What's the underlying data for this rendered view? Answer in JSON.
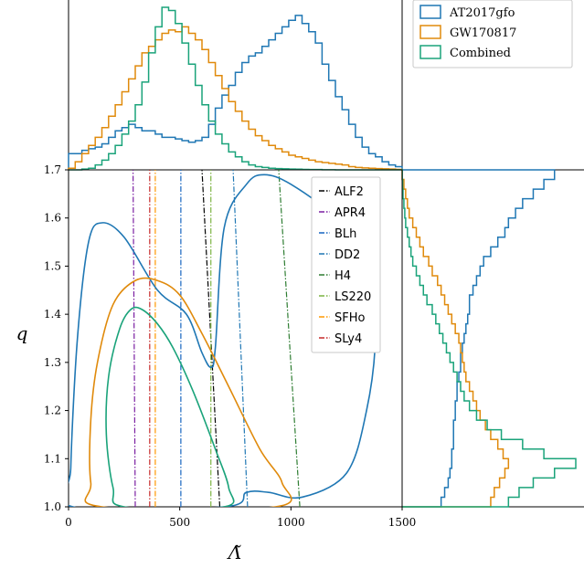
{
  "chart_data": {
    "type": "corner-plot",
    "x_axis": {
      "label": "Λ̃",
      "range": [
        0,
        1500
      ],
      "ticks": [
        0,
        500,
        1000,
        1500
      ]
    },
    "y_axis": {
      "label": "q",
      "range": [
        1.0,
        1.7
      ],
      "ticks": [
        1.0,
        1.1,
        1.2,
        1.3,
        1.4,
        1.5,
        1.6,
        1.7
      ]
    },
    "colors": {
      "AT2017gfo": "#1f77b4",
      "GW170817": "#e08a0b",
      "Combined": "#1aa37a"
    },
    "legend_top_right": {
      "placement": "top-right",
      "entries": [
        {
          "name": "AT2017gfo",
          "color": "#1f77b4"
        },
        {
          "name": "GW170817",
          "color": "#e08a0b"
        },
        {
          "name": "Combined",
          "color": "#1aa37a"
        }
      ]
    },
    "eos_lines": [
      {
        "name": "ALF2",
        "color": "#000000",
        "x_at_q1": 680,
        "x_at_q17": 600
      },
      {
        "name": "APR4",
        "color": "#7b1fa2",
        "x_at_q1": 300,
        "x_at_q17": 290
      },
      {
        "name": "BLh",
        "color": "#1565c0",
        "x_at_q1": 505,
        "x_at_q17": 505
      },
      {
        "name": "DD2",
        "color": "#1f77b4",
        "x_at_q1": 805,
        "x_at_q17": 740
      },
      {
        "name": "H4",
        "color": "#2e7d32",
        "x_at_q1": 1040,
        "x_at_q17": 945
      },
      {
        "name": "LS220",
        "color": "#7cb342",
        "x_at_q1": 640,
        "x_at_q17": 640
      },
      {
        "name": "SFHo",
        "color": "#ff9800",
        "x_at_q1": 390,
        "x_at_q17": 390
      },
      {
        "name": "SLy4",
        "color": "#c62828",
        "x_at_q1": 365,
        "x_at_q17": 365
      }
    ],
    "marginal_lambda_histograms": [
      {
        "name": "AT2017gfo",
        "bins": [
          0,
          30,
          60,
          90,
          120,
          150,
          180,
          210,
          240,
          270,
          300,
          330,
          360,
          390,
          420,
          450,
          480,
          510,
          540,
          570,
          600,
          630,
          660,
          690,
          720,
          750,
          780,
          810,
          840,
          870,
          900,
          930,
          960,
          990,
          1020,
          1050,
          1080,
          1110,
          1140,
          1170,
          1200,
          1230,
          1260,
          1290,
          1320,
          1350,
          1380,
          1410,
          1440,
          1470,
          1500
        ],
        "values": [
          0.1,
          0.1,
          0.12,
          0.13,
          0.14,
          0.16,
          0.2,
          0.24,
          0.26,
          0.28,
          0.26,
          0.24,
          0.24,
          0.22,
          0.2,
          0.2,
          0.19,
          0.18,
          0.17,
          0.18,
          0.2,
          0.28,
          0.38,
          0.46,
          0.52,
          0.6,
          0.66,
          0.7,
          0.72,
          0.76,
          0.8,
          0.84,
          0.88,
          0.92,
          0.95,
          0.9,
          0.85,
          0.78,
          0.65,
          0.55,
          0.45,
          0.37,
          0.28,
          0.2,
          0.14,
          0.1,
          0.08,
          0.05,
          0.03,
          0.02
        ]
      },
      {
        "name": "GW170817",
        "bins": [
          0,
          30,
          60,
          90,
          120,
          150,
          180,
          210,
          240,
          270,
          300,
          330,
          360,
          390,
          420,
          450,
          480,
          510,
          540,
          570,
          600,
          630,
          660,
          690,
          720,
          750,
          780,
          810,
          840,
          870,
          900,
          930,
          960,
          990,
          1020,
          1050,
          1080,
          1110,
          1140,
          1170,
          1200,
          1230,
          1260,
          1290,
          1320,
          1350,
          1380,
          1410,
          1440,
          1470,
          1500
        ],
        "values": [
          0.01,
          0.05,
          0.1,
          0.15,
          0.2,
          0.26,
          0.33,
          0.4,
          0.48,
          0.56,
          0.64,
          0.72,
          0.76,
          0.8,
          0.84,
          0.86,
          0.85,
          0.88,
          0.84,
          0.8,
          0.74,
          0.66,
          0.58,
          0.5,
          0.42,
          0.36,
          0.3,
          0.25,
          0.21,
          0.18,
          0.15,
          0.13,
          0.11,
          0.09,
          0.08,
          0.07,
          0.06,
          0.05,
          0.045,
          0.04,
          0.035,
          0.03,
          0.02,
          0.015,
          0.012,
          0.01,
          0.008,
          0.006,
          0.005,
          0.003
        ]
      },
      {
        "name": "Combined",
        "bins": [
          0,
          30,
          60,
          90,
          120,
          150,
          180,
          210,
          240,
          270,
          300,
          330,
          360,
          390,
          420,
          450,
          480,
          510,
          540,
          570,
          600,
          630,
          660,
          690,
          720,
          750,
          780,
          810,
          840,
          870,
          900,
          930,
          960,
          990,
          1020,
          1050,
          1080,
          1110,
          1140,
          1170,
          1200,
          1230,
          1260,
          1290,
          1320,
          1350,
          1380,
          1410,
          1440,
          1470,
          1500
        ],
        "values": [
          0.0,
          0.0,
          0.005,
          0.01,
          0.03,
          0.06,
          0.1,
          0.15,
          0.22,
          0.3,
          0.4,
          0.54,
          0.72,
          0.88,
          1.0,
          0.98,
          0.9,
          0.78,
          0.65,
          0.52,
          0.4,
          0.3,
          0.22,
          0.16,
          0.11,
          0.08,
          0.05,
          0.03,
          0.02,
          0.015,
          0.01,
          0.008,
          0.006,
          0.005,
          0.004,
          0.003,
          0.002,
          0.002,
          0.001,
          0.001,
          0.0,
          0.0,
          0.0,
          0.0,
          0.0,
          0.0,
          0.0,
          0.0,
          0.0,
          0.0
        ]
      }
    ],
    "marginal_q_histograms": [
      {
        "name": "AT2017gfo",
        "q_bins": [
          1.0,
          1.02,
          1.04,
          1.06,
          1.08,
          1.1,
          1.12,
          1.14,
          1.16,
          1.18,
          1.2,
          1.22,
          1.24,
          1.26,
          1.28,
          1.3,
          1.32,
          1.34,
          1.36,
          1.38,
          1.4,
          1.42,
          1.44,
          1.46,
          1.48,
          1.5,
          1.52,
          1.54,
          1.56,
          1.58,
          1.6,
          1.62,
          1.64,
          1.66,
          1.68,
          1.7
        ],
        "values": [
          0.22,
          0.24,
          0.26,
          0.27,
          0.28,
          0.28,
          0.29,
          0.29,
          0.29,
          0.3,
          0.3,
          0.31,
          0.31,
          0.32,
          0.33,
          0.33,
          0.34,
          0.35,
          0.36,
          0.37,
          0.38,
          0.38,
          0.4,
          0.42,
          0.44,
          0.46,
          0.5,
          0.54,
          0.58,
          0.6,
          0.64,
          0.68,
          0.74,
          0.8,
          0.86
        ]
      },
      {
        "name": "GW170817",
        "q_bins": [
          1.0,
          1.02,
          1.04,
          1.06,
          1.08,
          1.1,
          1.12,
          1.14,
          1.16,
          1.18,
          1.2,
          1.22,
          1.24,
          1.26,
          1.28,
          1.3,
          1.32,
          1.34,
          1.36,
          1.38,
          1.4,
          1.42,
          1.44,
          1.46,
          1.48,
          1.5,
          1.52,
          1.54,
          1.56,
          1.58,
          1.6,
          1.62,
          1.64,
          1.66,
          1.68,
          1.7
        ],
        "values": [
          0.5,
          0.52,
          0.55,
          0.58,
          0.6,
          0.57,
          0.54,
          0.5,
          0.47,
          0.44,
          0.42,
          0.4,
          0.38,
          0.36,
          0.35,
          0.34,
          0.33,
          0.32,
          0.3,
          0.28,
          0.26,
          0.24,
          0.22,
          0.2,
          0.17,
          0.15,
          0.12,
          0.1,
          0.08,
          0.06,
          0.04,
          0.03,
          0.02,
          0.01,
          0.0
        ]
      },
      {
        "name": "Combined",
        "q_bins": [
          1.0,
          1.02,
          1.04,
          1.06,
          1.08,
          1.1,
          1.12,
          1.14,
          1.16,
          1.18,
          1.2,
          1.22,
          1.24,
          1.26,
          1.28,
          1.3,
          1.32,
          1.34,
          1.36,
          1.38,
          1.4,
          1.42,
          1.44,
          1.46,
          1.48,
          1.5,
          1.52,
          1.54,
          1.56,
          1.58,
          1.6,
          1.62,
          1.64,
          1.66,
          1.68,
          1.7
        ],
        "values": [
          0.6,
          0.66,
          0.74,
          0.86,
          0.98,
          0.8,
          0.68,
          0.56,
          0.48,
          0.42,
          0.38,
          0.35,
          0.33,
          0.31,
          0.29,
          0.27,
          0.25,
          0.23,
          0.21,
          0.19,
          0.17,
          0.14,
          0.12,
          0.1,
          0.08,
          0.06,
          0.05,
          0.04,
          0.03,
          0.02,
          0.015,
          0.01,
          0.005,
          0.003,
          0.001
        ]
      }
    ],
    "contours": [
      {
        "name": "AT2017gfo",
        "points": [
          [
            20,
            1.0
          ],
          [
            10,
            1.08
          ],
          [
            40,
            1.35
          ],
          [
            90,
            1.55
          ],
          [
            150,
            1.59
          ],
          [
            250,
            1.56
          ],
          [
            400,
            1.45
          ],
          [
            530,
            1.4
          ],
          [
            600,
            1.32
          ],
          [
            640,
            1.29
          ],
          [
            660,
            1.33
          ],
          [
            700,
            1.58
          ],
          [
            800,
            1.67
          ],
          [
            880,
            1.69
          ],
          [
            1000,
            1.67
          ],
          [
            1200,
            1.6
          ],
          [
            1360,
            1.5
          ],
          [
            1380,
            1.35
          ],
          [
            1340,
            1.2
          ],
          [
            1250,
            1.07
          ],
          [
            1050,
            1.02
          ],
          [
            900,
            1.03
          ],
          [
            800,
            1.03
          ],
          [
            700,
            1.0
          ]
        ]
      },
      {
        "name": "GW170817",
        "points": [
          [
            150,
            1.0
          ],
          [
            100,
            1.05
          ],
          [
            100,
            1.18
          ],
          [
            130,
            1.3
          ],
          [
            200,
            1.42
          ],
          [
            300,
            1.47
          ],
          [
            400,
            1.47
          ],
          [
            500,
            1.44
          ],
          [
            600,
            1.36
          ],
          [
            720,
            1.25
          ],
          [
            860,
            1.12
          ],
          [
            960,
            1.05
          ],
          [
            930,
            1.0
          ]
        ]
      },
      {
        "name": "Combined",
        "points": [
          [
            250,
            1.0
          ],
          [
            200,
            1.04
          ],
          [
            170,
            1.15
          ],
          [
            180,
            1.27
          ],
          [
            230,
            1.37
          ],
          [
            280,
            1.41
          ],
          [
            330,
            1.41
          ],
          [
            400,
            1.38
          ],
          [
            470,
            1.33
          ],
          [
            560,
            1.24
          ],
          [
            660,
            1.12
          ],
          [
            720,
            1.04
          ],
          [
            700,
            1.0
          ]
        ]
      }
    ],
    "legend_eos": {
      "placement": "upper-right of main panel"
    }
  }
}
